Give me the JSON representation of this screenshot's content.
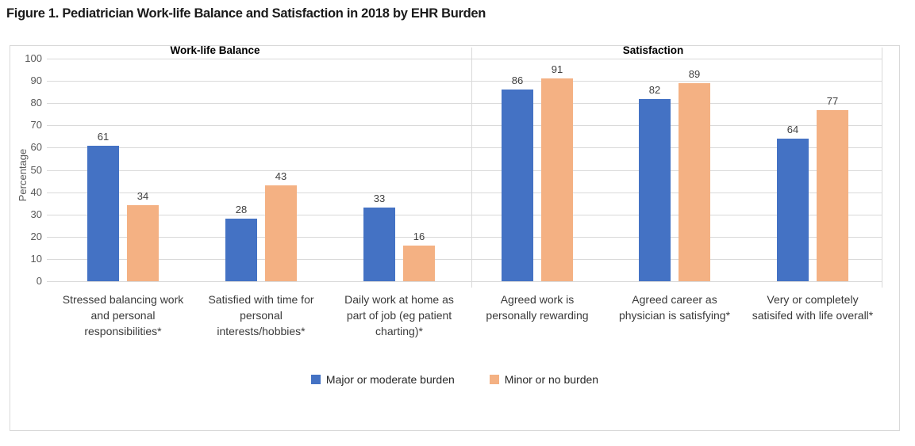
{
  "page": {
    "figure_title": "Figure 1. Pediatrician Work-life Balance and Satisfaction in 2018 by EHR Burden"
  },
  "chart_data": {
    "type": "bar",
    "title": "Figure 1. Pediatrician Work-life Balance and Satisfaction in 2018 by EHR Burden",
    "ylabel": "Percentage",
    "xlabel": "",
    "ylim": [
      0,
      100
    ],
    "yticks": [
      0,
      10,
      20,
      30,
      40,
      50,
      60,
      70,
      80,
      90,
      100
    ],
    "grid": true,
    "legend_position": "bottom",
    "panels": [
      {
        "label": "Work-life Balance",
        "category_indexes": [
          0,
          1,
          2
        ]
      },
      {
        "label": "Satisfaction",
        "category_indexes": [
          3,
          4,
          5
        ]
      }
    ],
    "categories": [
      "Stressed balancing work\nand personal\nresponsibilities*",
      "Satisfied with time for\npersonal\ninterests/hobbies*",
      "Daily work at home as\npart of job (eg patient\ncharting)*",
      "Agreed work is\npersonally rewarding",
      "Agreed career as\nphysician is satisfying*",
      "Very or completely\nsatisifed with life overall*"
    ],
    "series": [
      {
        "name": "Major or moderate burden",
        "color": "#4472C4",
        "values": [
          61,
          28,
          33,
          86,
          82,
          64
        ]
      },
      {
        "name": "Minor or no burden",
        "color": "#F4B183",
        "values": [
          34,
          43,
          16,
          91,
          89,
          77
        ]
      }
    ],
    "colors": {
      "gridline": "#D9D9D9",
      "border": "#D9D9D9",
      "axis_text": "#595959",
      "value_label": "#404040",
      "category_text": "#3a3a3a",
      "panel_title": "#000000"
    }
  }
}
